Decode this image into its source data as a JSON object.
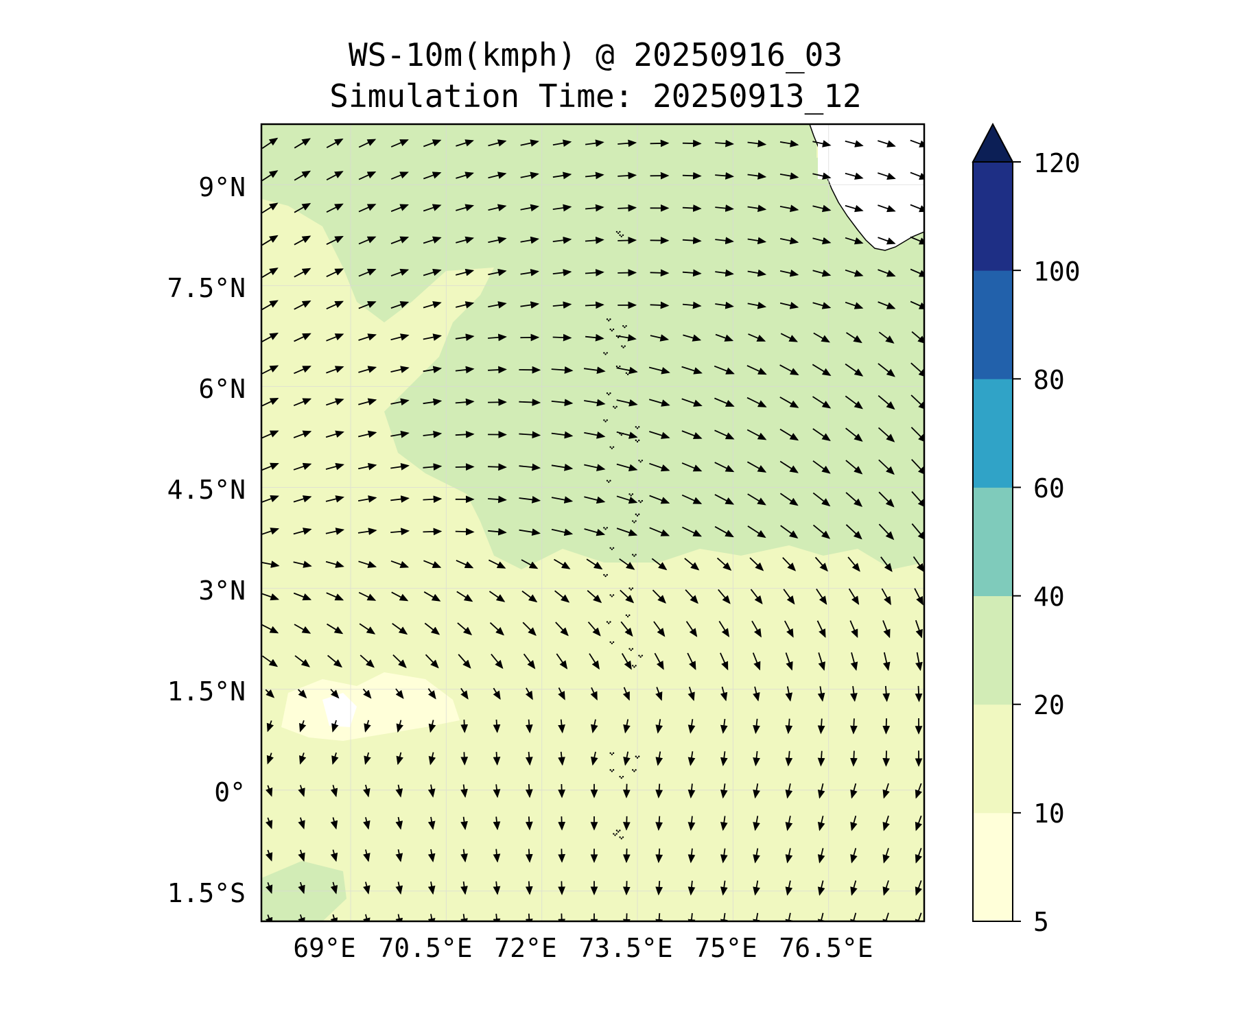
{
  "title": {
    "line1": "WS-10m(kmph) @ 20250916_03",
    "line2": "Simulation Time: 20250913_12"
  },
  "map": {
    "lat_labels": [
      "9°N",
      "7.5°N",
      "6°N",
      "4.5°N",
      "3°N",
      "1.5°N",
      "0°",
      "1.5°S"
    ],
    "lat_values": [
      9,
      7.5,
      6,
      4.5,
      3,
      1.5,
      0,
      -1.5
    ],
    "lon_labels": [
      "69°E",
      "70.5°E",
      "72°E",
      "73.5°E",
      "75°E",
      "76.5°E"
    ],
    "lon_values": [
      69,
      70.5,
      72,
      73.5,
      75,
      76.5
    ],
    "extent": {
      "lon_min": 67.6,
      "lon_max": 78.0,
      "lat_min": -1.95,
      "lat_max": 9.9
    },
    "features": [
      "coastline: southern tip of India (top-right)",
      "Maldives atolls (dotted, ~73.0–73.8°E)"
    ],
    "wind_field": "northwesterly/westerly flow north of 3°N veering to southerly/southwesterly south of 2°N; speeds mostly 10–30 kmph"
  },
  "colorbar": {
    "levels": [
      5,
      10,
      20,
      40,
      60,
      80,
      100,
      120
    ],
    "labels": [
      "5",
      "10",
      "20",
      "40",
      "60",
      "80",
      "100",
      "120"
    ],
    "colors": [
      "#ffffd9",
      "#f0f8c0",
      "#d2ecb6",
      "#7fcbbb",
      "#30a3c7",
      "#2261ab",
      "#1e2f85"
    ],
    "extend_color": "#0c1f56",
    "extend": "max"
  }
}
